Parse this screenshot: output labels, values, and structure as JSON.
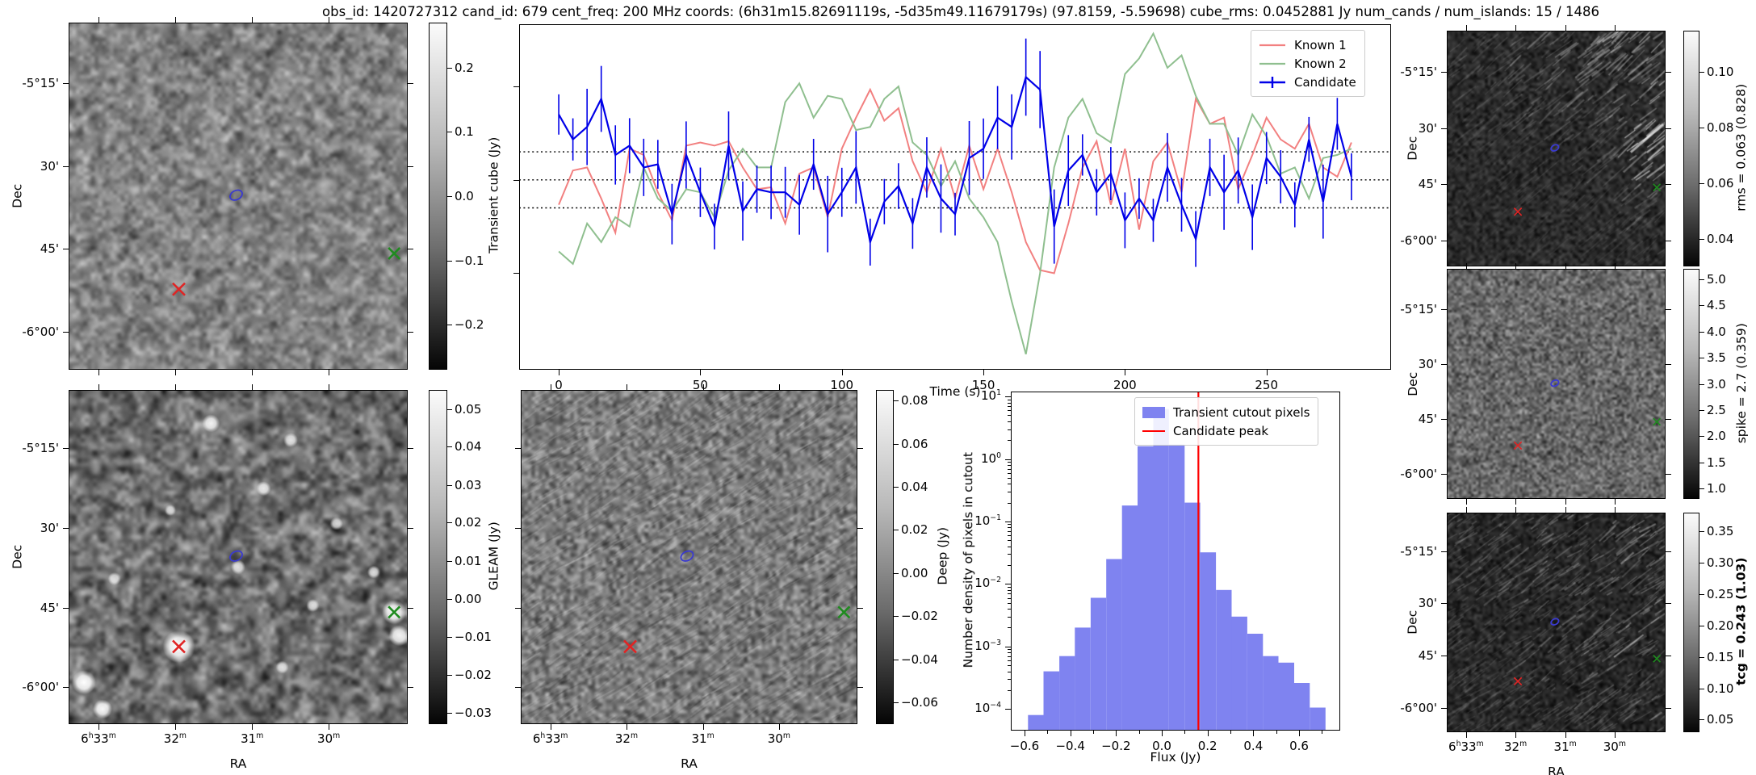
{
  "title": "obs_id: 1420727312 cand_id: 679 cent_freq: 200 MHz coords: (6h31m15.82691119s, -5d35m49.11679179s) (97.8159, -5.59698) cube_rms: 0.0452881 Jy num_cands / num_islands: 15 / 1486",
  "axis": {
    "dec_label": "Dec",
    "ra_label": "RA",
    "dec_ticks": [
      {
        "label": "-5°15'",
        "f": 0.175
      },
      {
        "label": "30'",
        "f": 0.413
      },
      {
        "label": "45'",
        "f": 0.652
      },
      {
        "label": "-6°00'",
        "f": 0.89
      }
    ],
    "ra_ticks": [
      {
        "label": "6h33m",
        "f": 0.088
      },
      {
        "label": "32m",
        "f": 0.314
      },
      {
        "label": "31m",
        "f": 0.541
      },
      {
        "label": "30m",
        "f": 0.767
      }
    ]
  },
  "markers": {
    "candidate_contour": {
      "fx": 0.494,
      "fy": 0.497,
      "color": "#3a3ad0",
      "type": "contour"
    },
    "known1_cross": {
      "fx": 0.325,
      "fy": 0.768,
      "color": "#e02424",
      "type": "x"
    },
    "known2_cross": {
      "fx": 0.96,
      "fy": 0.665,
      "color": "#1f8b1f",
      "type": "x"
    }
  },
  "panels": {
    "transient_cube": {
      "colorbar_label": "Transient cube (Jy)",
      "cb_ticks": [
        {
          "label": "0.2",
          "f": 0.13
        },
        {
          "label": "0.1",
          "f": 0.315
        },
        {
          "label": "0.0",
          "f": 0.5
        },
        {
          "label": "−0.1",
          "f": 0.685
        },
        {
          "label": "−0.2",
          "f": 0.87
        }
      ]
    },
    "gleam": {
      "colorbar_label": "GLEAM (Jy)",
      "cb_ticks": [
        {
          "label": "0.05",
          "f": 0.057
        },
        {
          "label": "0.04",
          "f": 0.17
        },
        {
          "label": "0.03",
          "f": 0.284
        },
        {
          "label": "0.02",
          "f": 0.397
        },
        {
          "label": "0.01",
          "f": 0.511
        },
        {
          "label": "0.00",
          "f": 0.625
        },
        {
          "label": "−0.01",
          "f": 0.738
        },
        {
          "label": "−0.02",
          "f": 0.852
        },
        {
          "label": "−0.03",
          "f": 0.966
        }
      ]
    },
    "deep": {
      "colorbar_label": "Deep (Jy)",
      "cb_ticks": [
        {
          "label": "0.08",
          "f": 0.032
        },
        {
          "label": "0.06",
          "f": 0.161
        },
        {
          "label": "0.04",
          "f": 0.29
        },
        {
          "label": "0.02",
          "f": 0.419
        },
        {
          "label": "0.00",
          "f": 0.548
        },
        {
          "label": "−0.02",
          "f": 0.677
        },
        {
          "label": "−0.04",
          "f": 0.806
        },
        {
          "label": "−0.06",
          "f": 0.935
        }
      ]
    },
    "rms": {
      "colorbar_label": "rms = 0.063 (0.828)",
      "cb_ticks": [
        {
          "label": "0.10",
          "f": 0.176
        },
        {
          "label": "0.08",
          "f": 0.411
        },
        {
          "label": "0.06",
          "f": 0.647
        },
        {
          "label": "0.04",
          "f": 0.882
        }
      ]
    },
    "spike": {
      "colorbar_label": "spike = 2.7 (0.359)",
      "cb_ticks": [
        {
          "label": "5.0",
          "f": 0.045
        },
        {
          "label": "4.5",
          "f": 0.159
        },
        {
          "label": "4.0",
          "f": 0.272
        },
        {
          "label": "3.5",
          "f": 0.386
        },
        {
          "label": "3.0",
          "f": 0.5
        },
        {
          "label": "2.5",
          "f": 0.614
        },
        {
          "label": "2.0",
          "f": 0.727
        },
        {
          "label": "1.5",
          "f": 0.841
        },
        {
          "label": "1.0",
          "f": 0.954
        }
      ]
    },
    "tcg": {
      "colorbar_label": "tcg = 0.243 (1.03)",
      "bold": true,
      "cb_ticks": [
        {
          "label": "0.35",
          "f": 0.086
        },
        {
          "label": "0.30",
          "f": 0.229
        },
        {
          "label": "0.25",
          "f": 0.371
        },
        {
          "label": "0.20",
          "f": 0.514
        },
        {
          "label": "0.15",
          "f": 0.657
        },
        {
          "label": "0.10",
          "f": 0.8
        },
        {
          "label": "0.05",
          "f": 0.943
        }
      ]
    }
  },
  "chart_data": [
    {
      "type": "line",
      "title": "",
      "xlabel": "Time (s)",
      "ylabel": "",
      "xlim": [
        -14,
        294
      ],
      "ylim": [
        -0.305,
        0.25
      ],
      "xticks": [
        0,
        50,
        100,
        150,
        200,
        250
      ],
      "hlines": [
        0.045,
        0.0,
        -0.045
      ],
      "hline_style": "dotted",
      "legend_position": "top-right",
      "x": [
        0,
        5,
        10,
        15,
        20,
        25,
        30,
        35,
        40,
        45,
        50,
        55,
        60,
        65,
        70,
        75,
        80,
        85,
        90,
        95,
        100,
        105,
        110,
        115,
        120,
        125,
        130,
        135,
        140,
        145,
        150,
        155,
        160,
        165,
        170,
        175,
        180,
        185,
        190,
        195,
        200,
        205,
        210,
        215,
        220,
        225,
        230,
        235,
        240,
        245,
        250,
        255,
        260,
        265,
        270,
        275,
        280
      ],
      "series": [
        {
          "name": "Known 1",
          "color": "#f28080",
          "values": [
            -0.04,
            0.015,
            0.02,
            -0.03,
            -0.085,
            0.05,
            0.04,
            -0.02,
            -0.065,
            0.055,
            0.06,
            0.055,
            0.062,
            0.02,
            -0.015,
            -0.012,
            -0.07,
            0.01,
            0.02,
            -0.06,
            0.05,
            0.1,
            0.145,
            0.095,
            0.115,
            0.03,
            -0.02,
            0.05,
            -0.03,
            0.055,
            -0.015,
            0.05,
            -0.02,
            -0.1,
            -0.145,
            -0.15,
            -0.07,
            0.02,
            0.062,
            -0.04,
            0.05,
            -0.08,
            0.03,
            0.06,
            -0.02,
            0.13,
            0.09,
            0.1,
            -0.015,
            0.04,
            0.1,
            0.065,
            0.05,
            0.09,
            0.02,
            0.005,
            0.06
          ]
        },
        {
          "name": "Known 2",
          "color": "#8fbf8f",
          "values": [
            -0.115,
            -0.135,
            -0.07,
            -0.1,
            -0.06,
            -0.075,
            0.02,
            -0.03,
            -0.05,
            -0.015,
            -0.02,
            -0.06,
            0.015,
            0.05,
            0.02,
            0.02,
            0.125,
            0.155,
            0.1,
            0.135,
            0.13,
            0.08,
            0.085,
            0.13,
            0.15,
            0.06,
            0.04,
            -0.01,
            0.03,
            -0.03,
            -0.06,
            -0.1,
            -0.195,
            -0.28,
            -0.15,
            0.02,
            0.1,
            0.13,
            0.075,
            0.06,
            0.17,
            0.195,
            0.235,
            0.18,
            0.2,
            0.135,
            0.09,
            0.09,
            0.04,
            0.105,
            0.07,
            0.01,
            0.02,
            -0.03,
            0.035,
            0.04,
            0.05
          ]
        },
        {
          "name": "Candidate",
          "color": "#0000e8",
          "yerr_typical": 0.045,
          "yerr_range": [
            0.032,
            0.062
          ],
          "values": [
            0.105,
            0.065,
            0.085,
            0.13,
            0.04,
            0.055,
            0.02,
            0.025,
            -0.055,
            0.04,
            -0.02,
            -0.075,
            0.055,
            -0.05,
            -0.015,
            -0.02,
            -0.02,
            -0.04,
            0.025,
            -0.055,
            -0.02,
            0.02,
            -0.1,
            -0.035,
            -0.01,
            -0.07,
            0.02,
            -0.03,
            -0.055,
            0.035,
            0.05,
            0.1,
            0.085,
            0.165,
            0.145,
            -0.075,
            0.015,
            0.04,
            -0.02,
            0.01,
            -0.065,
            -0.03,
            -0.065,
            0.02,
            -0.04,
            -0.095,
            0.02,
            -0.02,
            0.015,
            -0.06,
            0.035,
            0.005,
            -0.04,
            0.065,
            -0.035,
            0.09,
            0.005
          ]
        }
      ]
    },
    {
      "type": "bar",
      "title": "",
      "xlabel": "Flux (Jy)",
      "ylabel": "Number density of pixels in cutout",
      "yscale": "log",
      "xlim": [
        -0.66,
        0.78
      ],
      "ylim": [
        4.5e-05,
        12
      ],
      "xticks": [
        -0.6,
        -0.4,
        -0.2,
        0.0,
        0.2,
        0.4,
        0.6
      ],
      "ytick_exponents": [
        1,
        0,
        -1,
        -2,
        -3,
        -4
      ],
      "bar_color": "#7f83f0",
      "bin_edges": [
        -0.585,
        -0.517,
        -0.448,
        -0.38,
        -0.311,
        -0.243,
        -0.174,
        -0.106,
        -0.037,
        0.031,
        0.1,
        0.168,
        0.237,
        0.305,
        0.374,
        0.442,
        0.51,
        0.579,
        0.647,
        0.716
      ],
      "densities": [
        8e-05,
        0.0004,
        0.0007,
        0.002,
        0.006,
        0.025,
        0.18,
        1.6,
        6.3,
        1.7,
        0.2,
        0.032,
        0.008,
        0.003,
        0.0016,
        0.0007,
        0.00055,
        0.00026,
        0.000105
      ],
      "vline": {
        "x": 0.16,
        "color": "#ff0000",
        "label": "Candidate peak"
      },
      "legend": [
        {
          "label": "Transient cutout pixels",
          "swatch": "patch"
        },
        {
          "label": "Candidate peak",
          "swatch": "line"
        }
      ]
    }
  ]
}
